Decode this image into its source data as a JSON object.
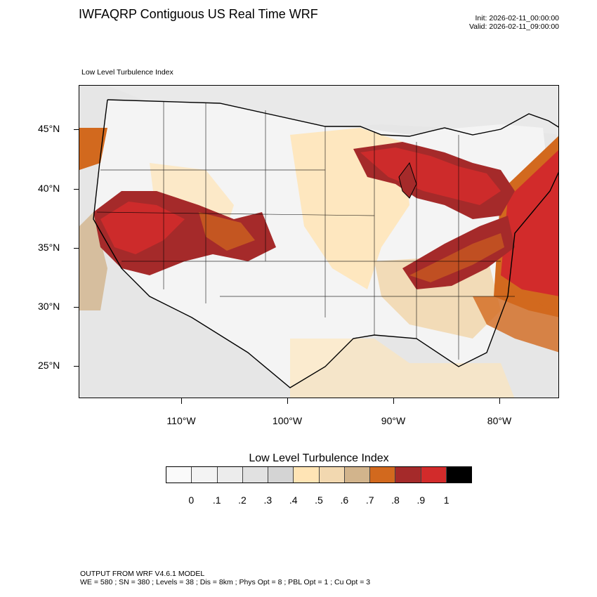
{
  "header": {
    "title": "IWFAQRP Contiguous US Real Time WRF",
    "init": "Init: 2026-02-11_00:00:00",
    "valid": "Valid: 2026-02-11_09:00:00"
  },
  "map": {
    "label": "Low Level Turbulence Index",
    "lat_labels": [
      "45°N",
      "40°N",
      "35°N",
      "30°N",
      "25°N"
    ],
    "lon_labels": [
      "110°W",
      "100°W",
      "90°W",
      "80°W"
    ]
  },
  "colorbar": {
    "title": "Low Level Turbulence Index",
    "colors": [
      "#fafafa",
      "#f3f3f3",
      "#ececec",
      "#e1e1e1",
      "#d4d4d4",
      "#ffe4b5",
      "#f2d8b0",
      "#d2b48c",
      "#d2691e",
      "#a52a2a",
      "#d22b2b",
      "#000000"
    ],
    "labels": [
      "0",
      ".1",
      ".2",
      ".3",
      ".4",
      ".5",
      ".6",
      ".7",
      ".8",
      ".9",
      "1"
    ]
  },
  "footer": {
    "line1": "OUTPUT FROM WRF V4.6.1 MODEL",
    "line2": "WE = 580 ; SN = 380 ; Levels = 38 ; Dis = 8km ; Phys Opt = 8 ; PBL Opt = 1 ; Cu Opt = 3"
  }
}
